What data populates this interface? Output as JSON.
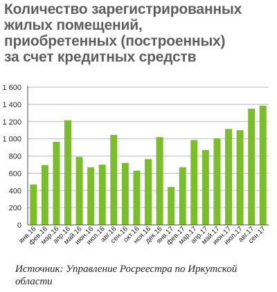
{
  "title_lines": [
    "Количество зарегистрированных",
    "жилых помещений,",
    "приобретенных (построенных)",
    "за счет кредитных средств"
  ],
  "source_text": "Источник: Управление Росреестра по Иркутской области",
  "colors": {
    "bar": "#7cbd2d",
    "grid": "#b8b8b8",
    "axis": "#444444",
    "title": "#5e5e5e"
  },
  "chart_data": {
    "type": "bar",
    "categories": [
      "янв.16",
      "фев.16",
      "мар.16",
      "апр.16",
      "май.16",
      "июн.16",
      "июл.16",
      "авг.16",
      "сен.16",
      "окт.16",
      "ноя.16",
      "дек.16",
      "янв.17",
      "фев.17",
      "мар.17",
      "апр.17",
      "май.17",
      "июн.17",
      "июл.17",
      "авг.17",
      "сен.17"
    ],
    "values": [
      470,
      695,
      965,
      1215,
      790,
      670,
      700,
      1045,
      720,
      630,
      765,
      1020,
      440,
      670,
      985,
      870,
      1005,
      1115,
      1100,
      1350,
      1385
    ],
    "ylim": [
      0,
      1600
    ],
    "yticks": [
      0,
      200,
      400,
      600,
      800,
      1000,
      1200,
      1400,
      1600
    ],
    "ytick_labels": [
      "0",
      "200",
      "400",
      "600",
      "800",
      "1 000",
      "1 200",
      "1 400",
      "1 600"
    ],
    "grid": true,
    "legend": "none"
  }
}
